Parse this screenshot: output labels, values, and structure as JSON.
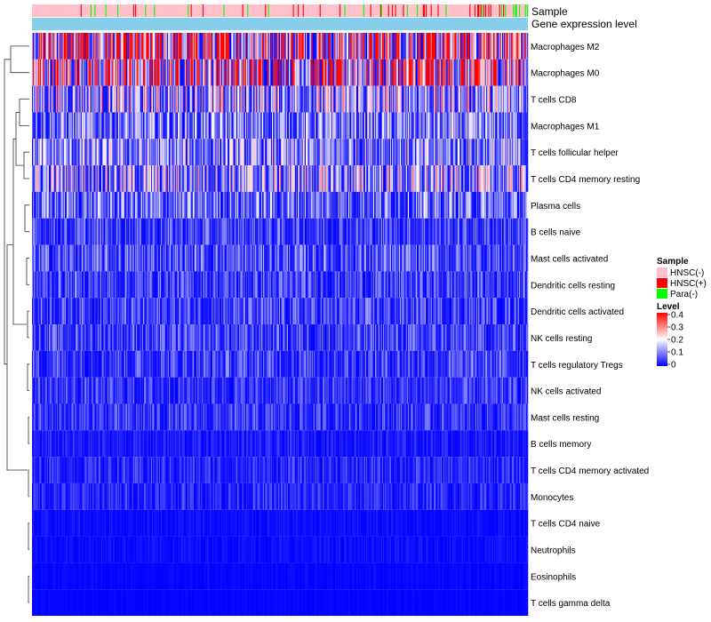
{
  "chart_data": {
    "type": "heatmap",
    "title": "",
    "annotations": {
      "sample_label": "Sample",
      "group_label": "Gene expression level"
    },
    "rows": [
      {
        "name": "Macrophages M2",
        "mean": 0.26
      },
      {
        "name": "Macrophages M0",
        "mean": 0.24
      },
      {
        "name": "T cells CD8",
        "mean": 0.13
      },
      {
        "name": "Macrophages M1",
        "mean": 0.09
      },
      {
        "name": "T cells follicular helper",
        "mean": 0.1
      },
      {
        "name": "T cells CD4 memory resting",
        "mean": 0.12
      },
      {
        "name": "Plasma cells",
        "mean": 0.08
      },
      {
        "name": "B cells naive",
        "mean": 0.05
      },
      {
        "name": "Mast cells activated",
        "mean": 0.06
      },
      {
        "name": "Dendritic cells resting",
        "mean": 0.05
      },
      {
        "name": "Dendritic cells activated",
        "mean": 0.05
      },
      {
        "name": "NK cells resting",
        "mean": 0.05
      },
      {
        "name": "T cells regulatory  Tregs",
        "mean": 0.05
      },
      {
        "name": "NK cells activated",
        "mean": 0.04
      },
      {
        "name": "Mast cells resting",
        "mean": 0.04
      },
      {
        "name": "B cells memory",
        "mean": 0.02
      },
      {
        "name": "T cells CD4 memory activated",
        "mean": 0.03
      },
      {
        "name": "Monocytes",
        "mean": 0.03
      },
      {
        "name": "T cells CD4 naive",
        "mean": 0.01
      },
      {
        "name": "Neutrophils",
        "mean": 0.01
      },
      {
        "name": "Eosinophils",
        "mean": 0.005
      },
      {
        "name": "T cells gamma delta",
        "mean": 0.003
      }
    ],
    "n_columns": 500,
    "value_range": [
      0,
      0.4
    ],
    "dendrogram": "rows",
    "legend": {
      "sample": {
        "title": "Sample",
        "items": [
          {
            "label": "HNSC(-)",
            "color": "#ffc0cb"
          },
          {
            "label": "HNSC(+)",
            "color": "#ff0000"
          },
          {
            "label": "Para(-)",
            "color": "#00ff00"
          }
        ]
      },
      "level": {
        "title": "Level",
        "ticks": [
          "0.4",
          "0.3",
          "0.2",
          "0.1",
          "0"
        ],
        "tick_values": [
          0.4,
          0.3,
          0.2,
          0.1,
          0
        ],
        "colors": [
          "#0000ff",
          "#ffffff",
          "#ff0000"
        ]
      }
    },
    "group_bar_color": "#87ceeb",
    "legend_position": "right"
  }
}
